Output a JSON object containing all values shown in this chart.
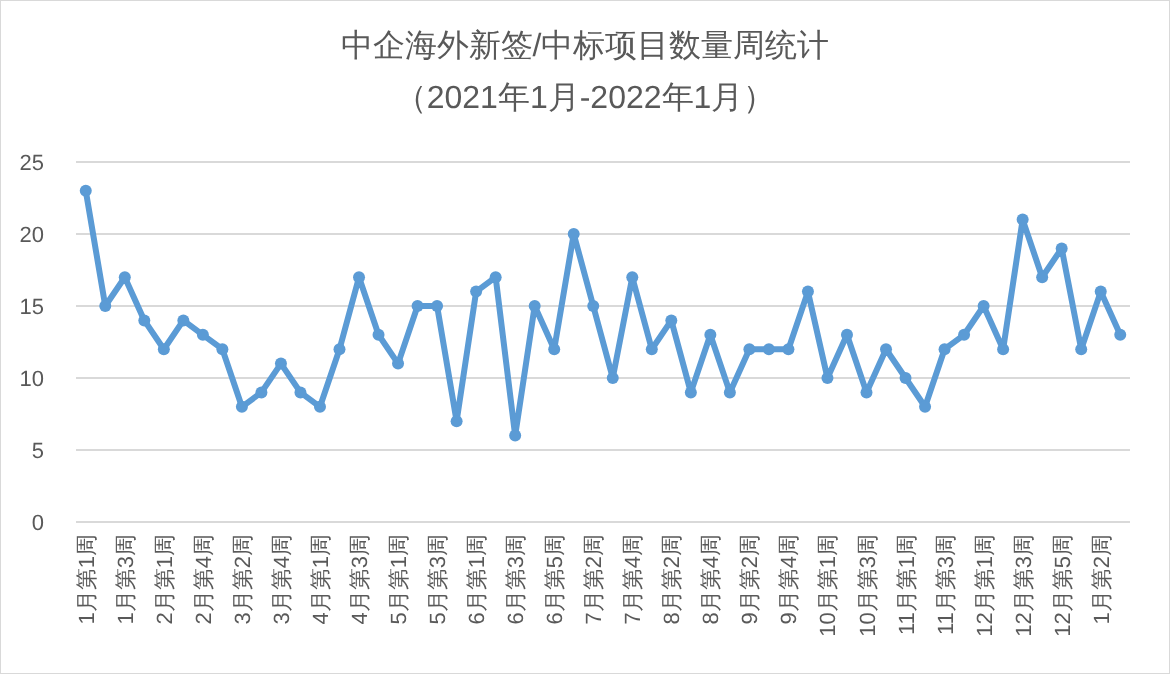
{
  "chart_data": {
    "type": "line",
    "title": "中企海外新签/中标项目数量周统计",
    "subtitle": "（2021年1月-2022年1月）",
    "categories": [
      "1月第1周",
      null,
      "1月第3周",
      null,
      "2月第1周",
      null,
      "2月第4周",
      null,
      "3月第2周",
      null,
      "3月第4周",
      null,
      "4月第1周",
      null,
      "4月第3周",
      null,
      "5月第1周",
      null,
      "5月第3周",
      null,
      "6月第1周",
      null,
      "6月第3周",
      null,
      "6月第5周",
      null,
      "7月第2周",
      null,
      "7月第4周",
      null,
      "8月第2周",
      null,
      "8月第4周",
      null,
      "9月第2周",
      null,
      "9月第4周",
      null,
      "10月第1周",
      null,
      "10月第3周",
      null,
      "11月第1周",
      null,
      "11月第3周",
      null,
      "12月第1周",
      null,
      "12月第3周",
      null,
      "12月第5周",
      null,
      "1月第2周",
      null
    ],
    "series": [
      {
        "color": "#5b9bd5",
        "values": [
          23,
          15,
          17,
          14,
          12,
          14,
          13,
          12,
          8,
          9,
          11,
          9,
          8,
          12,
          17,
          13,
          11,
          15,
          15,
          7,
          16,
          17,
          6,
          15,
          12,
          20,
          15,
          10,
          17,
          12,
          14,
          9,
          13,
          9,
          12,
          12,
          12,
          16,
          10,
          13,
          9,
          12,
          10,
          8,
          12,
          13,
          15,
          12,
          21,
          17,
          19,
          12,
          16,
          13
        ]
      }
    ],
    "ylim": [
      0,
      25
    ],
    "yticks": [
      0,
      5,
      10,
      15,
      20,
      25
    ],
    "grid": "y",
    "marker": "circle",
    "line_style": "solid"
  }
}
